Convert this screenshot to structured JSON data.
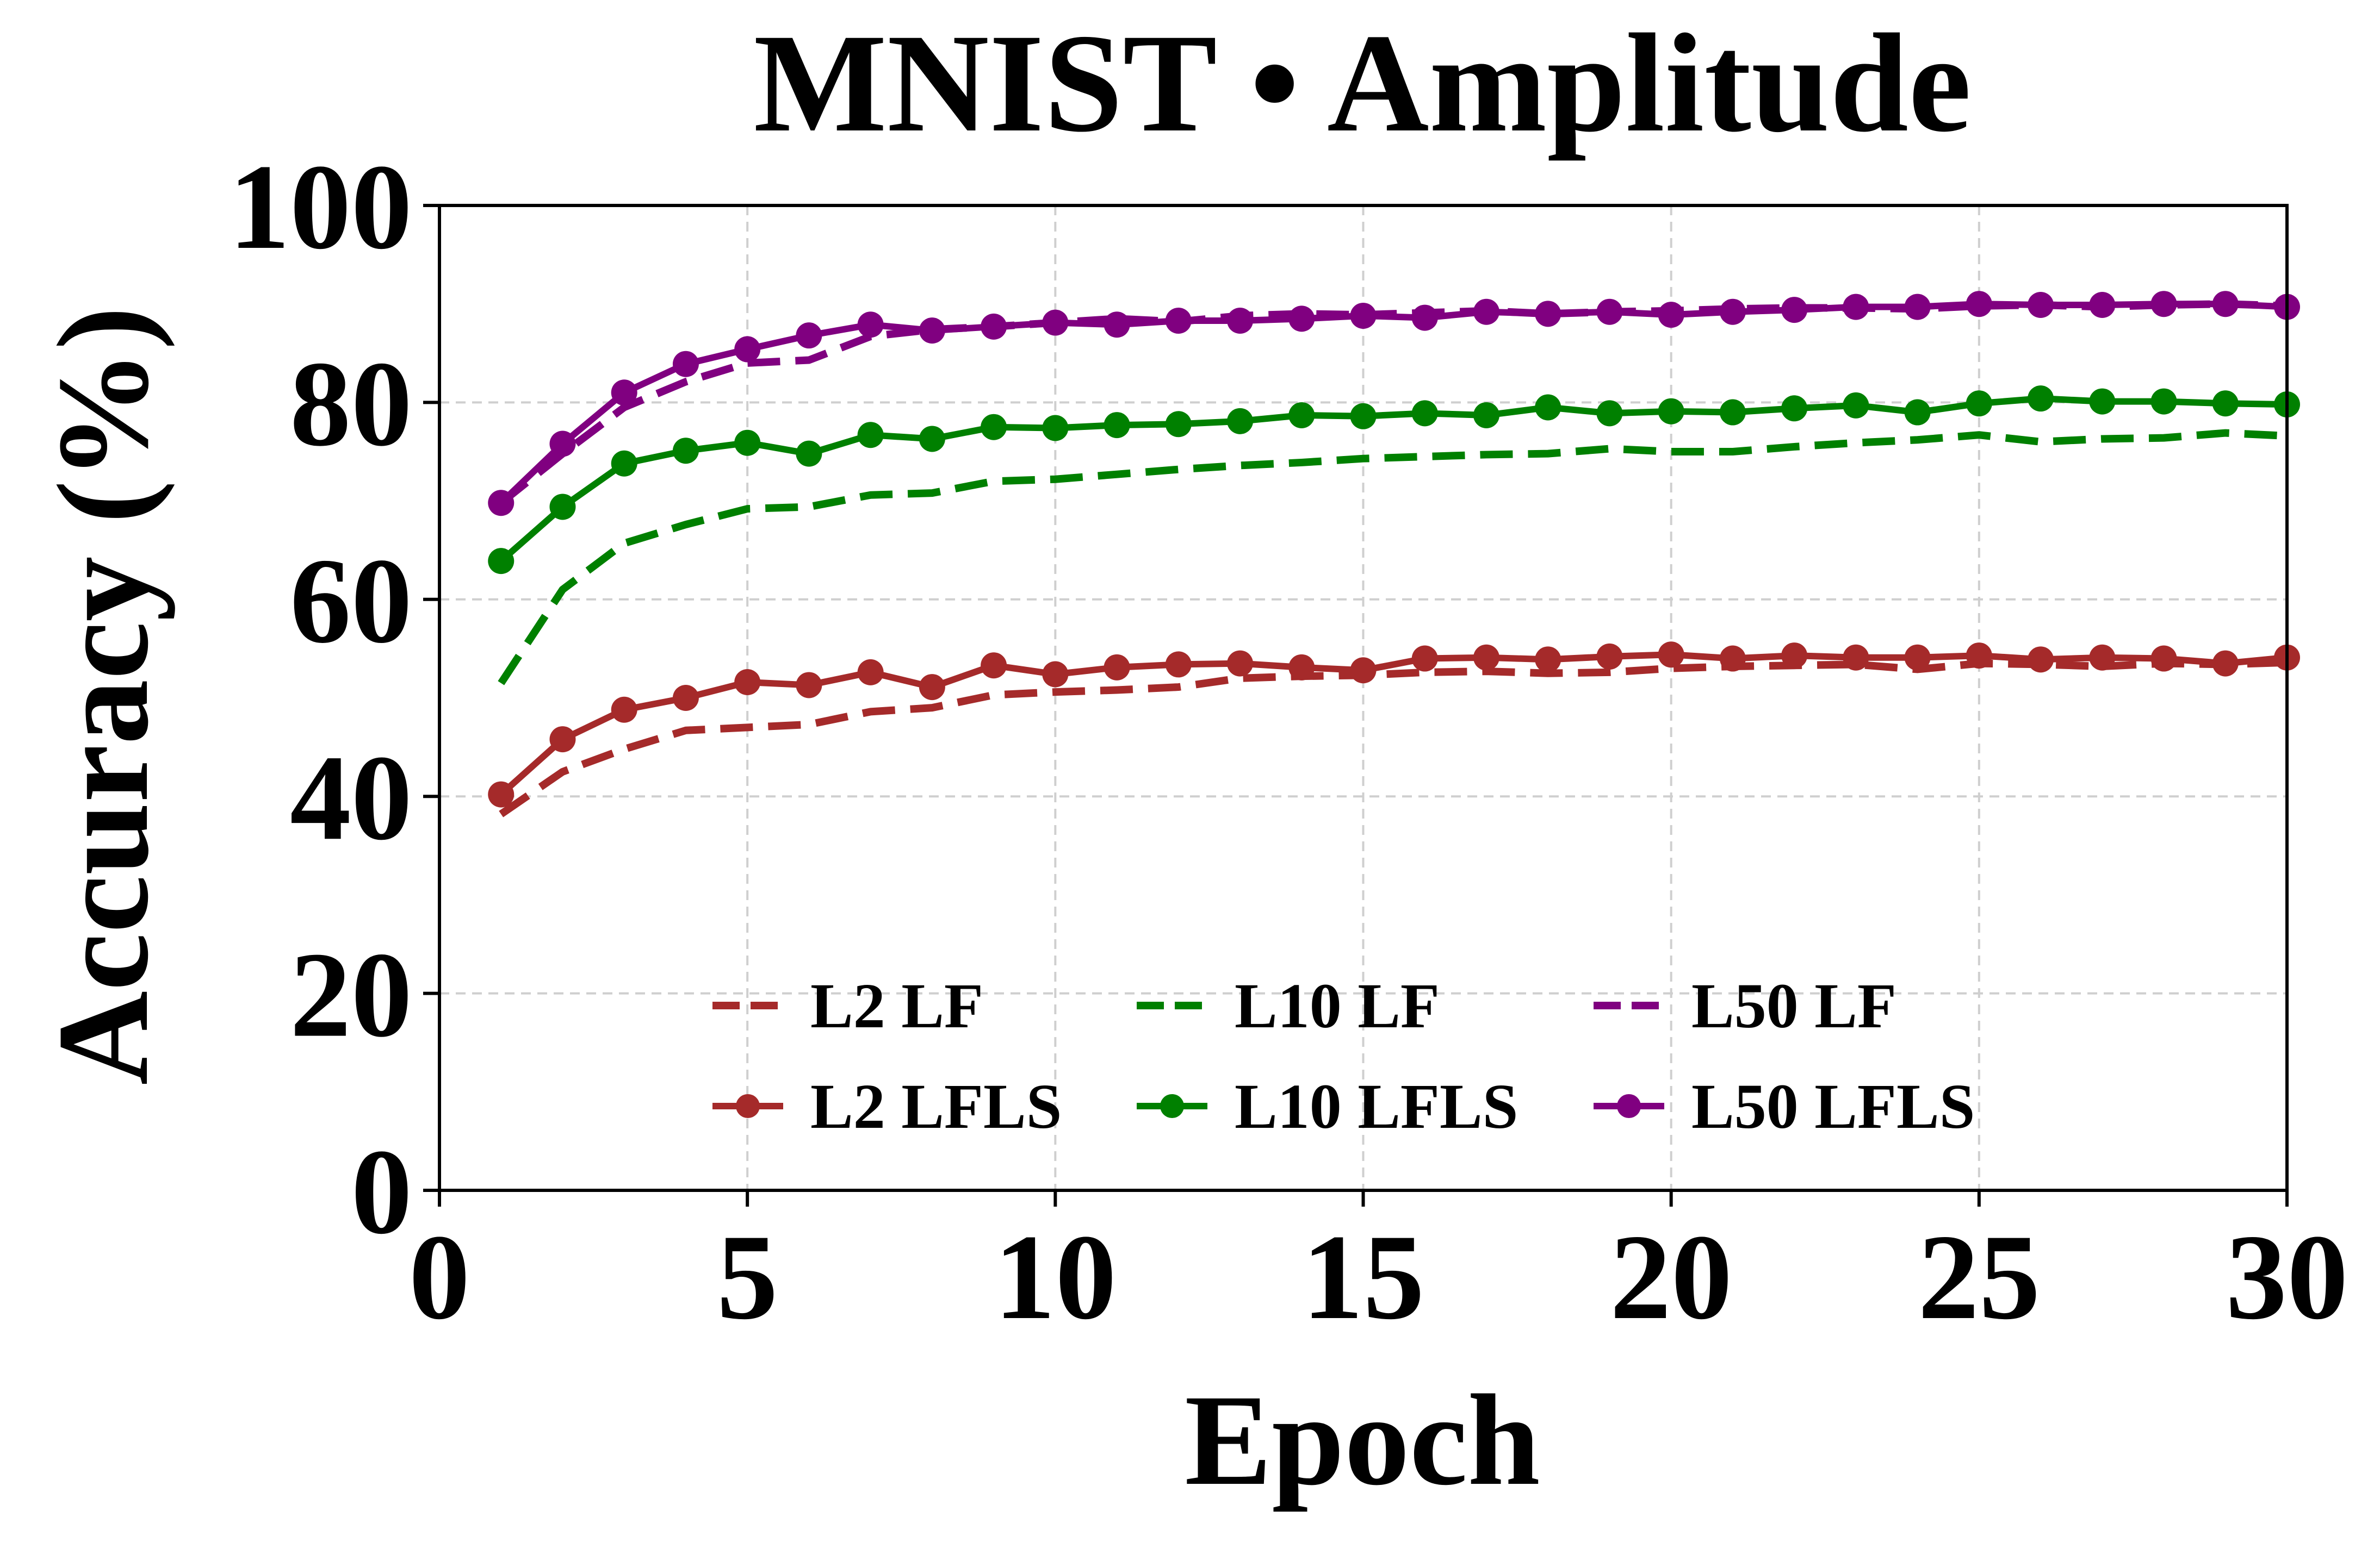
{
  "chart_data": {
    "type": "line",
    "title": "MNIST • Amplitude",
    "xlabel": "Epoch",
    "ylabel": "Accuracy (%)",
    "xlim": [
      0,
      30
    ],
    "ylim": [
      0,
      100
    ],
    "xticks": [
      0,
      5,
      10,
      15,
      20,
      25,
      30
    ],
    "yticks": [
      0,
      20,
      40,
      60,
      80,
      100
    ],
    "grid": true,
    "legend_position": "lower-center",
    "x": [
      1,
      2,
      3,
      4,
      5,
      6,
      7,
      8,
      9,
      10,
      11,
      12,
      13,
      14,
      15,
      16,
      17,
      18,
      19,
      20,
      21,
      22,
      23,
      24,
      25,
      26,
      27,
      28,
      29,
      30
    ],
    "series": [
      {
        "name": "L2 LF",
        "color": "#a52a2a",
        "style": "dashed",
        "marker": false,
        "values": [
          38.2,
          42.5,
          44.8,
          46.7,
          47.0,
          47.3,
          48.6,
          49.0,
          50.3,
          50.6,
          50.8,
          51.1,
          52.0,
          52.2,
          52.3,
          52.6,
          52.7,
          52.5,
          52.6,
          53.0,
          53.2,
          53.3,
          53.4,
          52.9,
          53.5,
          53.4,
          53.2,
          53.5,
          53.4,
          53.6
        ]
      },
      {
        "name": "L2 LFLS",
        "color": "#a52a2a",
        "style": "solid",
        "marker": true,
        "values": [
          40.2,
          45.8,
          48.8,
          50.0,
          51.6,
          51.3,
          52.6,
          51.1,
          53.3,
          52.4,
          53.1,
          53.4,
          53.5,
          53.1,
          52.8,
          54.0,
          54.1,
          53.9,
          54.2,
          54.4,
          54.0,
          54.3,
          54.1,
          54.1,
          54.3,
          53.9,
          54.1,
          54.0,
          53.5,
          54.1
        ]
      },
      {
        "name": "L10 LF",
        "color": "#008000",
        "style": "dashed",
        "marker": false,
        "values": [
          51.5,
          61.0,
          65.7,
          67.6,
          69.2,
          69.4,
          70.6,
          70.8,
          72.0,
          72.2,
          72.7,
          73.2,
          73.6,
          73.9,
          74.3,
          74.5,
          74.7,
          74.8,
          75.3,
          75.0,
          75.0,
          75.5,
          75.9,
          76.2,
          76.7,
          76.0,
          76.3,
          76.4,
          76.9,
          76.6
        ]
      },
      {
        "name": "L10 LFLS",
        "color": "#008000",
        "style": "solid",
        "marker": true,
        "values": [
          63.9,
          69.4,
          73.8,
          75.1,
          75.9,
          74.8,
          76.7,
          76.3,
          77.5,
          77.4,
          77.7,
          77.8,
          78.1,
          78.7,
          78.6,
          78.9,
          78.7,
          79.5,
          78.9,
          79.1,
          79.0,
          79.4,
          79.7,
          79.0,
          79.9,
          80.4,
          80.1,
          80.1,
          79.9,
          79.8
        ]
      },
      {
        "name": "L50 LF",
        "color": "#800080",
        "style": "dashed",
        "marker": false,
        "values": [
          69.8,
          74.8,
          79.5,
          82.1,
          84.0,
          84.3,
          86.7,
          87.4,
          87.7,
          88.1,
          88.5,
          88.2,
          88.8,
          89.0,
          88.9,
          89.1,
          89.3,
          89.0,
          89.2,
          89.3,
          89.5,
          89.6,
          89.6,
          89.5,
          89.8,
          89.9,
          89.7,
          89.9,
          90.0,
          89.8
        ]
      },
      {
        "name": "L50 LFLS",
        "color": "#800080",
        "style": "solid",
        "marker": true,
        "values": [
          69.8,
          75.8,
          81.0,
          83.9,
          85.4,
          86.8,
          87.9,
          87.3,
          87.7,
          88.1,
          87.9,
          88.3,
          88.3,
          88.5,
          88.8,
          88.6,
          89.2,
          89.0,
          89.2,
          88.9,
          89.2,
          89.4,
          89.7,
          89.7,
          90.0,
          89.9,
          89.9,
          90.0,
          90.0,
          89.7
        ]
      }
    ],
    "legend": {
      "columns": 3,
      "order": [
        "L2 LF",
        "L10 LF",
        "L50 LF",
        "L2 LFLS",
        "L10 LFLS",
        "L50 LFLS"
      ]
    }
  }
}
